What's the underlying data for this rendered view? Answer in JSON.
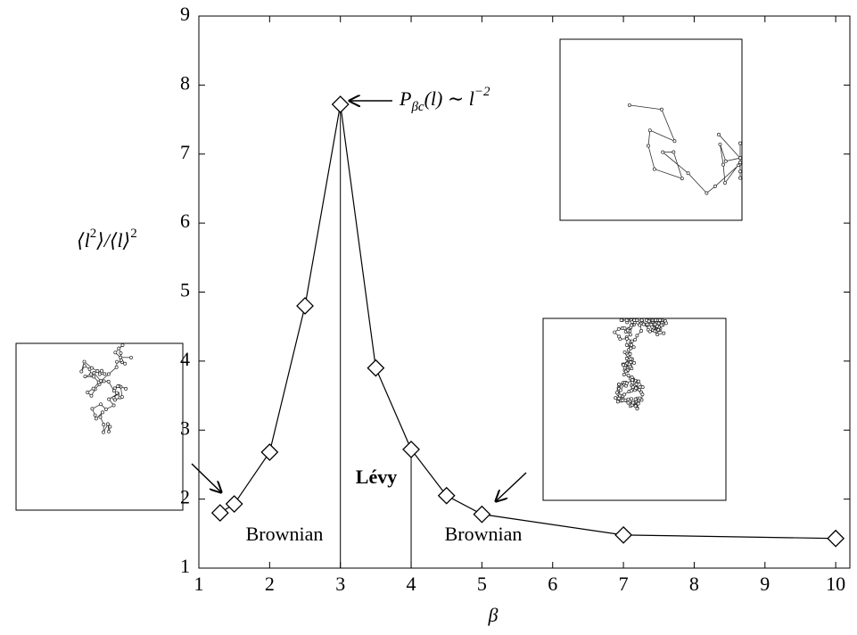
{
  "chart_data": {
    "type": "line",
    "x_label": "β",
    "y_label_parts": [
      "⟨l",
      "2",
      "⟩/⟨l⟩",
      "2"
    ],
    "x": [
      1.3,
      1.5,
      2,
      2.5,
      3,
      3.5,
      4,
      4.5,
      5,
      7,
      10
    ],
    "series": [
      {
        "color": "#000000",
        "values": [
          1.8,
          1.93,
          2.68,
          4.8,
          7.72,
          3.9,
          2.72,
          2.05,
          1.78,
          1.48,
          1.43
        ]
      }
    ],
    "xlim": [
      1,
      10.2
    ],
    "ylim": [
      1,
      9
    ],
    "xticks": [
      1,
      2,
      3,
      4,
      5,
      6,
      7,
      8,
      9,
      10
    ],
    "yticks": [
      1,
      2,
      3,
      4,
      5,
      6,
      7,
      8,
      9
    ],
    "annotation_parts": [
      "P",
      "βc",
      "(l) ∼ l",
      "−2"
    ],
    "region_labels": [
      "Brownian",
      "Lévy",
      "Brownian"
    ],
    "boundaries": [
      3,
      4
    ]
  }
}
